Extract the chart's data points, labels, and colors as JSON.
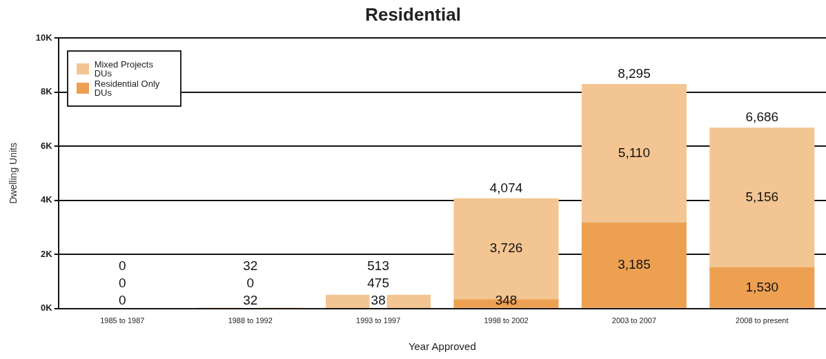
{
  "chart_data": {
    "type": "bar",
    "title": "Residential",
    "xlabel": "Year Approved",
    "ylabel": "Dwelling Units",
    "categories": [
      "1985 to 1987",
      "1988 to 1992",
      "1993 to 1997",
      "1998 to 2002",
      "2003 to 2007",
      "2008 to present"
    ],
    "stacked": true,
    "series": [
      {
        "name": "Residential Only DUs",
        "color": "#eea052",
        "values": [
          0,
          32,
          38,
          348,
          3185,
          1530
        ],
        "value_labels": [
          "0",
          "32",
          "38",
          "348",
          "3,185",
          "1,530"
        ]
      },
      {
        "name": "Mixed Projects DUs",
        "color": "#f3c592",
        "values": [
          0,
          0,
          475,
          3726,
          5110,
          5156
        ],
        "value_labels": [
          "0",
          "0",
          "475",
          "3,726",
          "5,110",
          "5,156"
        ]
      }
    ],
    "totals": [
      "0",
      "32",
      "513",
      "4,074",
      "8,295",
      "6,686"
    ],
    "ylim": [
      0,
      10000
    ],
    "yticks": [
      {
        "value": 0,
        "label": "0K"
      },
      {
        "value": 2000,
        "label": "2K"
      },
      {
        "value": 4000,
        "label": "4K"
      },
      {
        "value": 6000,
        "label": "6K"
      },
      {
        "value": 8000,
        "label": "8K"
      },
      {
        "value": 10000,
        "label": "10K"
      }
    ],
    "grid": "y",
    "legend": "top left"
  }
}
